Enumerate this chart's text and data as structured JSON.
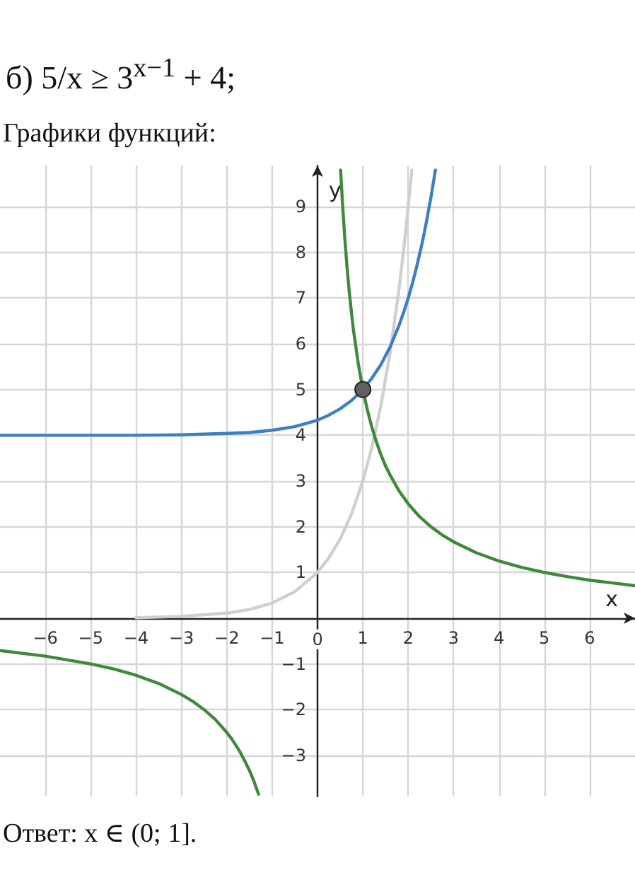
{
  "chart_data": {
    "type": "line",
    "title": "б) 5/x ≥ 3$^{x−1}$ + 4;",
    "subtitle": "Графики функций:",
    "xlabel": "x",
    "ylabel": "y",
    "annotations": [
      "Ответ: x ∈ (0; 1]."
    ],
    "xlim": [
      -7,
      7
    ],
    "ylim": [
      -3.9,
      9.9
    ],
    "xticks": [
      {
        "value": -6,
        "label": "−6"
      },
      {
        "value": -5,
        "label": "−5"
      },
      {
        "value": -4,
        "label": "−4"
      },
      {
        "value": -3,
        "label": "−3"
      },
      {
        "value": -2,
        "label": "−2"
      },
      {
        "value": -1,
        "label": "−1"
      },
      0,
      1,
      2,
      3,
      4,
      5,
      6
    ],
    "yticks": [
      {
        "value": -3,
        "label": "−3"
      },
      {
        "value": -2,
        "label": "−2"
      },
      {
        "value": -1,
        "label": "−1"
      },
      1,
      2,
      3,
      4,
      5,
      6,
      7,
      8,
      9
    ],
    "grid": true,
    "series": [
      {
        "color": "#cfcfcf",
        "x": [
          -4,
          -3,
          -2,
          -1.5,
          -1,
          -0.5,
          0,
          0.25,
          0.5,
          0.75,
          1,
          1.2,
          1.4,
          1.6,
          1.8,
          1.9,
          2,
          2.08
        ],
        "values": [
          0.01,
          0.04,
          0.11,
          0.19,
          0.33,
          0.58,
          1,
          1.32,
          1.73,
          2.28,
          3,
          3.74,
          4.66,
          5.8,
          7.22,
          8.06,
          9,
          9.8
        ]
      },
      {
        "color": "#3c7fc5",
        "x": [
          -7,
          -6,
          -5,
          -4,
          -3,
          -2,
          -1.5,
          -1,
          -0.5,
          0,
          0.25,
          0.5,
          0.75,
          1,
          1.2,
          1.4,
          1.6,
          1.8,
          1.9,
          2,
          2.1,
          2.2,
          2.3,
          2.4,
          2.5,
          2.6
        ],
        "values": [
          4,
          4,
          4,
          4,
          4.01,
          4.04,
          4.06,
          4.11,
          4.19,
          4.33,
          4.44,
          4.58,
          4.76,
          5,
          5.25,
          5.55,
          5.93,
          6.41,
          6.69,
          7,
          7.35,
          7.74,
          8.17,
          8.66,
          9.2,
          9.8
        ]
      },
      {
        "color": "#3f8a3a",
        "x": [
          -7,
          -6,
          -5,
          -4.5,
          -4,
          -3.5,
          -3,
          -2.75,
          -2.5,
          -2.25,
          -2,
          -1.9,
          -1.8,
          -1.7,
          -1.6,
          -1.5,
          -1.4,
          -1.3,
          0,
          0.51,
          0.55,
          0.6,
          0.65,
          0.7,
          0.75,
          0.8,
          0.9,
          1,
          1.1,
          1.2,
          1.3,
          1.4,
          1.5,
          1.6,
          1.8,
          2,
          2.25,
          2.5,
          2.75,
          3,
          3.5,
          4,
          4.5,
          5,
          5.5,
          6,
          6.5,
          7
        ],
        "values": [
          -0.71,
          -0.83,
          -1,
          -1.11,
          -1.25,
          -1.43,
          -1.67,
          -1.82,
          -2,
          -2.22,
          -2.5,
          -2.63,
          -2.78,
          -2.94,
          -3.13,
          -3.33,
          -3.57,
          -3.85,
          null,
          9.8,
          9.09,
          8.33,
          7.69,
          7.14,
          6.67,
          6.25,
          5.56,
          5,
          4.55,
          4.17,
          3.85,
          3.57,
          3.33,
          3.13,
          2.78,
          2.5,
          2.22,
          2,
          1.82,
          1.67,
          1.43,
          1.25,
          1.11,
          1,
          0.91,
          0.83,
          0.77,
          0.71
        ]
      },
      {
        "type": "scatter",
        "marker": "circle",
        "color": "#616161",
        "x": [
          1
        ],
        "values": [
          5
        ]
      }
    ]
  }
}
